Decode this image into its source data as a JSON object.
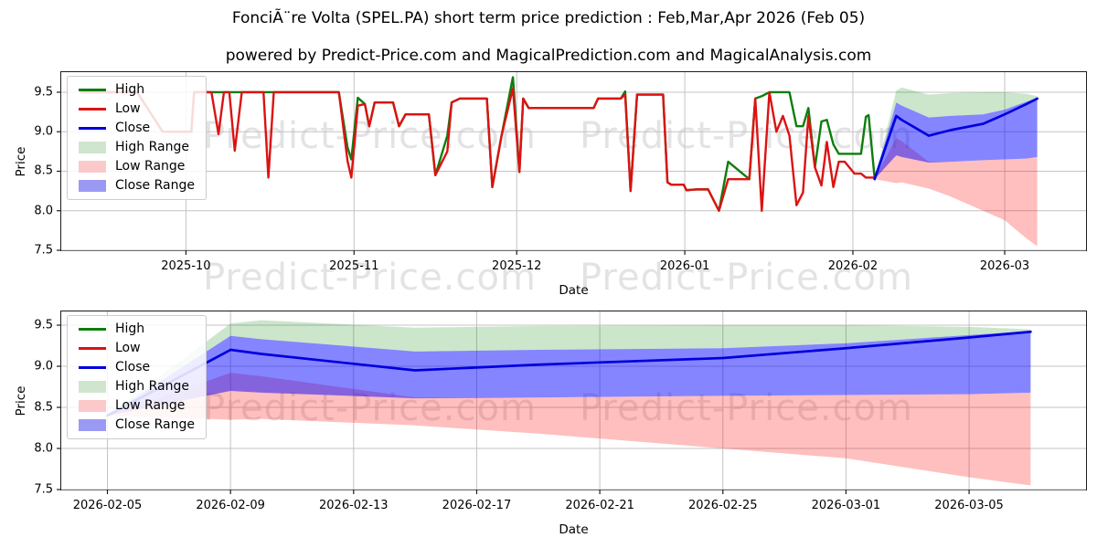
{
  "title": "FonciÃ¨re Volta (SPEL.PA) short term price prediction : Feb,Mar,Apr 2026 (Feb 05)",
  "subtitle": "powered by Predict-Price.com and MagicalPrediction.com and MagicalAnalysis.com",
  "watermark": {
    "text": "Predict-Price.com"
  },
  "colors": {
    "high": "#0d7d0d",
    "low": "#dc1212",
    "close": "#0000de",
    "high_range": "rgba(0,128,0,0.20)",
    "low_range": "rgba(255,0,0,0.25)",
    "close_range": "rgba(0,0,255,0.48)",
    "grid": "#c3c3c3",
    "spine": "#1c1c1c"
  },
  "legend": {
    "items": [
      {
        "label": "High",
        "swatch": "line",
        "color": "#0d7d0d"
      },
      {
        "label": "Low",
        "swatch": "line",
        "color": "#dc1212"
      },
      {
        "label": "Close",
        "swatch": "line",
        "color": "#0000de"
      },
      {
        "label": "High Range",
        "swatch": "patch",
        "color": "#cfe5cd"
      },
      {
        "label": "Low Range",
        "swatch": "patch",
        "color": "#fbc9c9"
      },
      {
        "label": "Close Range",
        "swatch": "patch",
        "color": "#9a9af5"
      }
    ]
  },
  "chart_data": [
    {
      "type": "line",
      "name": "price-history-and-forecast",
      "xlabel": "Date",
      "ylabel": "Price",
      "x_unit": "days since 2025-10-01",
      "xlim": [
        -23,
        166
      ],
      "ylim": [
        7.5,
        9.754
      ],
      "grid": true,
      "legend_position": "upper left",
      "xticks": [
        {
          "x": 0,
          "label": "2025-10"
        },
        {
          "x": 31,
          "label": "2025-11"
        },
        {
          "x": 61,
          "label": "2025-12"
        },
        {
          "x": 92,
          "label": "2026-01"
        },
        {
          "x": 123,
          "label": "2026-02"
        },
        {
          "x": 151,
          "label": "2026-03"
        }
      ],
      "yticks": [
        {
          "v": 7.5,
          "label": "7.5"
        },
        {
          "v": 8.0,
          "label": "8.0"
        },
        {
          "v": 8.5,
          "label": "8.5"
        },
        {
          "v": 9.0,
          "label": "9.0"
        },
        {
          "v": 9.5,
          "label": "9.5"
        }
      ],
      "bands": [
        {
          "name": "High Range",
          "key": "high_range",
          "x": [
            127,
            131,
            132,
            137,
            141,
            147,
            151,
            155,
            157
          ],
          "top": [
            8.4,
            9.52,
            9.56,
            9.47,
            9.49,
            9.5,
            9.5,
            9.48,
            9.45
          ],
          "bottom": [
            8.4,
            9.37,
            9.33,
            9.18,
            9.2,
            9.22,
            9.28,
            9.38,
            9.43
          ]
        },
        {
          "name": "Low Range",
          "key": "low_range",
          "x": [
            127,
            131,
            132,
            137,
            141,
            147,
            151,
            155,
            157
          ],
          "top": [
            8.4,
            8.92,
            8.88,
            8.62,
            8.62,
            8.64,
            8.65,
            8.66,
            8.68
          ],
          "bottom": [
            8.4,
            8.35,
            8.36,
            8.28,
            8.18,
            8.0,
            7.88,
            7.65,
            7.55
          ]
        },
        {
          "name": "Close Range",
          "key": "close_range",
          "x": [
            127,
            131,
            132,
            137,
            141,
            147,
            151,
            155,
            157
          ],
          "top": [
            8.4,
            9.37,
            9.33,
            9.18,
            9.2,
            9.22,
            9.28,
            9.38,
            9.43
          ],
          "bottom": [
            8.4,
            8.7,
            8.68,
            8.61,
            8.62,
            8.64,
            8.65,
            8.66,
            8.68
          ]
        }
      ],
      "series": [
        {
          "name": "High",
          "key": "high",
          "width": 2.4,
          "x": [
            -19.3,
            -9,
            -4.3,
            1,
            1.5,
            4.7,
            6,
            7,
            8,
            9,
            10.3,
            14.3,
            15.2,
            16.2,
            28.2,
            29.8,
            30.5,
            31.7,
            33,
            33.8,
            34.8,
            38.2,
            39.3,
            40.5,
            44.8,
            46,
            48.2,
            49,
            50.5,
            55.5,
            56.5,
            58.2,
            60.3,
            61.5,
            62.2,
            63.2,
            75.2,
            76,
            80.2,
            81,
            82,
            83.2,
            88,
            88.8,
            89.5,
            91.8,
            92.3,
            94,
            96.3,
            98.3,
            100,
            103.9,
            105,
            106.2,
            107.6,
            108.9,
            110.1,
            111.3,
            112.6,
            113.8,
            114.8,
            116,
            117.2,
            118.2,
            119.4,
            120.4,
            121.5,
            123.3,
            124.5,
            125.4,
            125.9,
            127
          ],
          "y": [
            9.5,
            9.5,
            9.0,
            9.0,
            9.5,
            9.5,
            9.5,
            9.5,
            9.5,
            9.5,
            9.5,
            9.5,
            9.5,
            9.5,
            9.5,
            8.8,
            8.65,
            9.43,
            9.35,
            9.07,
            9.37,
            9.37,
            9.07,
            9.22,
            9.22,
            8.45,
            8.95,
            9.37,
            9.42,
            9.42,
            8.3,
            8.95,
            9.69,
            8.49,
            9.42,
            9.3,
            9.3,
            9.42,
            9.42,
            9.51,
            8.25,
            9.47,
            9.47,
            8.36,
            8.33,
            8.33,
            8.26,
            8.27,
            8.27,
            8.0,
            8.62,
            8.4,
            9.42,
            9.45,
            9.5,
            9.5,
            9.5,
            9.5,
            9.07,
            9.07,
            9.3,
            8.55,
            9.13,
            9.15,
            8.84,
            8.72,
            8.72,
            8.72,
            8.72,
            9.19,
            9.21,
            8.42
          ]
        },
        {
          "name": "Low",
          "key": "low",
          "width": 2.4,
          "x": [
            -19.3,
            -9,
            -4.3,
            1,
            1.5,
            4.7,
            6,
            7,
            8,
            9,
            10.3,
            14.3,
            15.2,
            16.2,
            28.2,
            29.8,
            30.5,
            31.7,
            33,
            33.8,
            34.8,
            38.2,
            39.3,
            40.5,
            44.8,
            46,
            48.2,
            49,
            50.5,
            55.5,
            56.5,
            58.2,
            60.3,
            61.5,
            62.2,
            63.2,
            75.2,
            76,
            80.2,
            81,
            82,
            83.2,
            88,
            88.8,
            89.5,
            91.8,
            92.3,
            94,
            96.3,
            98.3,
            100,
            103.9,
            105,
            106.2,
            107.6,
            108.9,
            110.1,
            111.3,
            112.6,
            113.8,
            114.8,
            116,
            117.2,
            118.2,
            119.4,
            120.4,
            121.5,
            123.3,
            124.5,
            125.4,
            125.9,
            127
          ],
          "y": [
            9.5,
            9.5,
            9.0,
            9.0,
            9.5,
            9.5,
            8.97,
            9.5,
            9.5,
            8.76,
            9.5,
            9.5,
            8.42,
            9.5,
            9.5,
            8.63,
            8.42,
            9.33,
            9.35,
            9.07,
            9.37,
            9.37,
            9.07,
            9.22,
            9.22,
            8.45,
            8.75,
            9.37,
            9.42,
            9.42,
            8.3,
            8.95,
            9.55,
            8.49,
            9.42,
            9.3,
            9.3,
            9.42,
            9.42,
            9.47,
            8.25,
            9.47,
            9.47,
            8.36,
            8.33,
            8.33,
            8.26,
            8.27,
            8.27,
            8.0,
            8.4,
            8.4,
            9.42,
            8.0,
            9.5,
            9.0,
            9.2,
            8.95,
            8.07,
            8.23,
            9.2,
            8.55,
            8.32,
            8.87,
            8.3,
            8.62,
            8.62,
            8.47,
            8.47,
            8.42,
            8.42,
            8.42
          ]
        },
        {
          "name": "Close",
          "key": "close",
          "width": 2.7,
          "x": [
            127,
            131,
            132,
            137,
            141,
            147,
            151,
            155,
            157
          ],
          "y": [
            8.4,
            9.2,
            9.15,
            8.95,
            9.02,
            9.1,
            9.22,
            9.35,
            9.42
          ]
        }
      ]
    },
    {
      "type": "line",
      "name": "forecast-detail",
      "xlabel": "Date",
      "ylabel": "Price",
      "x_unit": "days since 2026-02-05",
      "xlim": [
        -1.5,
        31.8
      ],
      "ylim": [
        7.5,
        9.667
      ],
      "grid": true,
      "legend_position": "upper left",
      "xticks": [
        {
          "x": 0,
          "label": "2026-02-05"
        },
        {
          "x": 4,
          "label": "2026-02-09"
        },
        {
          "x": 8,
          "label": "2026-02-13"
        },
        {
          "x": 12,
          "label": "2026-02-17"
        },
        {
          "x": 16,
          "label": "2026-02-21"
        },
        {
          "x": 20,
          "label": "2026-02-25"
        },
        {
          "x": 24,
          "label": "2026-03-01"
        },
        {
          "x": 28,
          "label": "2026-03-05"
        }
      ],
      "yticks": [
        {
          "v": 7.5,
          "label": "7.5"
        },
        {
          "v": 8.0,
          "label": "8.0"
        },
        {
          "v": 8.5,
          "label": "8.5"
        },
        {
          "v": 9.0,
          "label": "9.0"
        },
        {
          "v": 9.5,
          "label": "9.5"
        }
      ],
      "bands": [
        {
          "name": "High Range",
          "key": "high_range",
          "x": [
            0,
            4,
            5,
            10,
            14,
            20,
            24,
            28,
            30
          ],
          "top": [
            8.4,
            9.52,
            9.56,
            9.47,
            9.49,
            9.5,
            9.5,
            9.48,
            9.45
          ],
          "bottom": [
            8.4,
            9.37,
            9.33,
            9.18,
            9.2,
            9.22,
            9.28,
            9.38,
            9.43
          ]
        },
        {
          "name": "Low Range",
          "key": "low_range",
          "x": [
            0,
            4,
            5,
            10,
            14,
            20,
            24,
            28,
            30
          ],
          "top": [
            8.4,
            8.92,
            8.88,
            8.62,
            8.62,
            8.64,
            8.65,
            8.66,
            8.68
          ],
          "bottom": [
            8.4,
            8.35,
            8.36,
            8.28,
            8.18,
            8.0,
            7.88,
            7.65,
            7.55
          ]
        },
        {
          "name": "Close Range",
          "key": "close_range",
          "x": [
            0,
            4,
            5,
            10,
            14,
            20,
            24,
            28,
            30
          ],
          "top": [
            8.4,
            9.37,
            9.33,
            9.18,
            9.2,
            9.22,
            9.28,
            9.38,
            9.43
          ],
          "bottom": [
            8.4,
            8.7,
            8.68,
            8.61,
            8.62,
            8.64,
            8.65,
            8.66,
            8.68
          ]
        }
      ],
      "series": [
        {
          "name": "Close",
          "key": "close",
          "width": 2.7,
          "x": [
            0,
            4,
            5,
            10,
            14,
            20,
            24,
            28,
            30
          ],
          "y": [
            8.4,
            9.2,
            9.15,
            8.95,
            9.02,
            9.1,
            9.22,
            9.35,
            9.42
          ]
        }
      ]
    }
  ]
}
